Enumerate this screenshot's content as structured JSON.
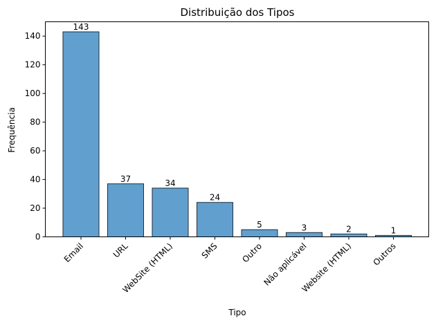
{
  "chart_data": {
    "type": "bar",
    "title": "Distribuição dos Tipos",
    "xlabel": "Tipo",
    "ylabel": "Frequência",
    "categories": [
      "Email",
      "URL",
      "WebSite (HTML)",
      "SMS",
      "Outro",
      "Não aplicável",
      "Website (HTML)",
      "Outros"
    ],
    "values": [
      143,
      37,
      34,
      24,
      5,
      3,
      2,
      1
    ],
    "ylim": [
      0,
      150
    ],
    "yticks": [
      0,
      20,
      40,
      60,
      80,
      100,
      120,
      140
    ],
    "grid": false,
    "bar_color": "#3a87c2",
    "edge_color": "#1f2d3a",
    "data_labels": true
  }
}
